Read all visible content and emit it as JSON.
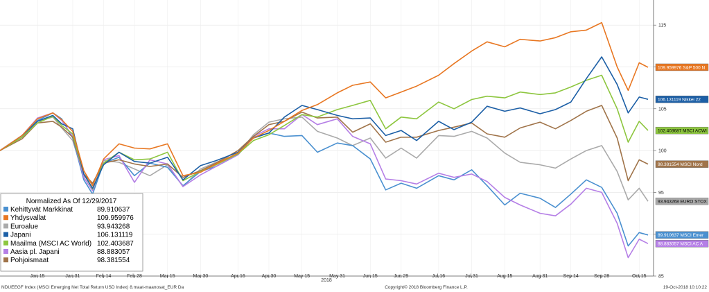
{
  "chart_data": {
    "type": "line",
    "title": "Normalized As Of 12/29/2017",
    "ylim": [
      85,
      118
    ],
    "y_ticks": [
      85,
      90,
      95,
      100,
      105,
      110,
      115
    ],
    "x_ticks": [
      "Jan 15",
      "Jan 31",
      "Feb 14",
      "Feb 28",
      "Mar 15",
      "Mar 30",
      "Apr 16",
      "Apr 30",
      "May 15",
      "May 31",
      "Jun 15",
      "Jun 29",
      "Jul 16",
      "Jul 31",
      "Aug 15",
      "Aug 31",
      "Sep 14",
      "Sep 28",
      "Oct 15"
    ],
    "year_label": "2018",
    "grid": true,
    "legend_placement": "bottom-left",
    "x_dates": [
      "2017-12-29",
      "2018-01-08",
      "2018-01-15",
      "2018-01-22",
      "2018-01-26",
      "2018-01-31",
      "2018-02-05",
      "2018-02-09",
      "2018-02-14",
      "2018-02-21",
      "2018-02-28",
      "2018-03-07",
      "2018-03-15",
      "2018-03-22",
      "2018-03-30",
      "2018-04-06",
      "2018-04-16",
      "2018-04-23",
      "2018-04-30",
      "2018-05-07",
      "2018-05-15",
      "2018-05-22",
      "2018-05-31",
      "2018-06-07",
      "2018-06-15",
      "2018-06-22",
      "2018-06-29",
      "2018-07-06",
      "2018-07-16",
      "2018-07-23",
      "2018-07-31",
      "2018-08-07",
      "2018-08-15",
      "2018-08-22",
      "2018-08-31",
      "2018-09-07",
      "2018-09-14",
      "2018-09-21",
      "2018-09-28",
      "2018-10-05",
      "2018-10-10",
      "2018-10-15",
      "2018-10-19"
    ],
    "series": [
      {
        "name": "Kehittyvät Markkinat",
        "color": "#4a90d0",
        "value_label": "89.910637",
        "tag": "MSCI Emer",
        "values": [
          100,
          101.6,
          103.6,
          104.5,
          103.8,
          101.5,
          96.5,
          94.8,
          98.5,
          99.2,
          97.0,
          98.5,
          98.0,
          95.8,
          97.5,
          98.1,
          99.5,
          101.6,
          102.1,
          101.7,
          101.8,
          99.8,
          100.9,
          100.6,
          99.0,
          95.3,
          96.1,
          95.5,
          97.0,
          96.5,
          97.7,
          95.8,
          93.5,
          94.9,
          94.3,
          93.2,
          94.8,
          96.5,
          95.6,
          92.5,
          88.6,
          90.2,
          89.91
        ]
      },
      {
        "name": "Yhdysvallat",
        "color": "#e87722",
        "value_label": "109.959976",
        "tag": "S&P 500 N",
        "values": [
          100,
          101.8,
          103.8,
          104.5,
          103.7,
          102.3,
          97.6,
          95.8,
          99.0,
          100.8,
          100.3,
          100.2,
          100.8,
          97.0,
          97.4,
          98.4,
          99.7,
          101.5,
          102.4,
          103.5,
          104.8,
          105.5,
          106.9,
          107.8,
          108.2,
          106.3,
          107.0,
          107.7,
          109.0,
          110.4,
          111.9,
          113.0,
          112.4,
          113.3,
          113.1,
          113.5,
          114.2,
          114.4,
          115.3,
          110.0,
          107.2,
          110.5,
          109.96
        ]
      },
      {
        "name": "Euroalue",
        "color": "#aaaaaa",
        "value_label": "93.943268",
        "tag": "EURO STOX",
        "values": [
          100,
          101.8,
          103.5,
          104.0,
          102.7,
          101.2,
          97.0,
          96.0,
          98.8,
          98.6,
          97.8,
          97.0,
          98.3,
          95.7,
          97.8,
          98.6,
          99.6,
          101.9,
          103.4,
          103.8,
          104.0,
          102.3,
          101.5,
          100.6,
          101.5,
          99.1,
          100.3,
          99.1,
          101.8,
          101.7,
          102.3,
          101.5,
          99.7,
          98.6,
          98.3,
          97.9,
          99.0,
          100.0,
          100.6,
          97.5,
          94.1,
          95.5,
          93.94
        ]
      },
      {
        "name": "Japani",
        "color": "#1c5fa6",
        "value_label": "106.131119",
        "tag": "Nikkei 22",
        "values": [
          100,
          101.8,
          103.5,
          104.2,
          103.2,
          102.6,
          97.2,
          95.5,
          98.3,
          99.8,
          98.7,
          98.5,
          99.2,
          96.5,
          98.2,
          98.8,
          99.8,
          101.5,
          102.1,
          104.0,
          105.4,
          104.9,
          104.2,
          103.8,
          103.9,
          101.8,
          102.4,
          101.2,
          103.5,
          102.5,
          103.4,
          105.3,
          104.7,
          105.1,
          104.4,
          104.9,
          105.8,
          108.6,
          111.2,
          107.9,
          104.5,
          106.4,
          106.13
        ]
      },
      {
        "name": "Maailma (MSCI AC World)",
        "color": "#8dc63f",
        "value_label": "102.403687",
        "tag": "MSCI ACWI",
        "values": [
          100,
          101.6,
          103.3,
          104.1,
          103.0,
          102.0,
          97.2,
          95.4,
          98.5,
          99.8,
          98.9,
          99.0,
          99.8,
          96.4,
          97.5,
          98.3,
          99.6,
          101.2,
          101.9,
          103.0,
          104.3,
          104.0,
          104.9,
          105.4,
          106.0,
          102.6,
          104.0,
          103.8,
          105.8,
          105.0,
          106.1,
          106.5,
          106.3,
          107.0,
          106.7,
          106.9,
          107.6,
          108.4,
          109.0,
          105.0,
          101.0,
          103.5,
          102.4
        ]
      },
      {
        "name": "Aasia pl. Japani",
        "color": "#b57fe6",
        "value_label": "88.883057",
        "tag": "MSCI AC A",
        "values": [
          100,
          101.8,
          103.9,
          104.5,
          103.6,
          101.7,
          96.8,
          95.2,
          98.9,
          99.4,
          96.2,
          98.9,
          98.4,
          95.7,
          97.1,
          98.1,
          99.5,
          101.7,
          102.6,
          102.6,
          104.3,
          103.1,
          103.8,
          101.7,
          100.8,
          96.6,
          96.4,
          96.0,
          97.3,
          96.8,
          97.2,
          96.3,
          94.4,
          93.5,
          92.5,
          92.2,
          93.6,
          95.5,
          95.0,
          91.3,
          87.2,
          89.4,
          88.88
        ]
      },
      {
        "name": "Pohjoismaat",
        "color": "#a0744a",
        "value_label": "98.381554",
        "tag": "MSCI Nord",
        "values": [
          100,
          101.4,
          103.3,
          103.5,
          102.8,
          101.6,
          97.2,
          96.1,
          98.5,
          98.9,
          98.4,
          98.1,
          98.4,
          96.8,
          97.6,
          98.5,
          100.0,
          101.7,
          103.1,
          103.5,
          104.6,
          103.9,
          104.0,
          102.2,
          103.2,
          101.0,
          101.6,
          101.6,
          102.4,
          102.8,
          103.3,
          102.0,
          101.6,
          102.7,
          103.4,
          102.6,
          103.6,
          104.7,
          105.4,
          101.5,
          96.4,
          98.9,
          98.38
        ]
      }
    ]
  },
  "legend_title": "Normalized As Of 12/29/2017",
  "footer": {
    "left": "NDUEEGF Index (MSCI Emerging Net Total Return USD Index) 8.maat-maanosat_EUR  Da",
    "center": "Copyright© 2018 Bloomberg Finance L.P.",
    "right": "19-Oct-2018 10:10:22"
  }
}
